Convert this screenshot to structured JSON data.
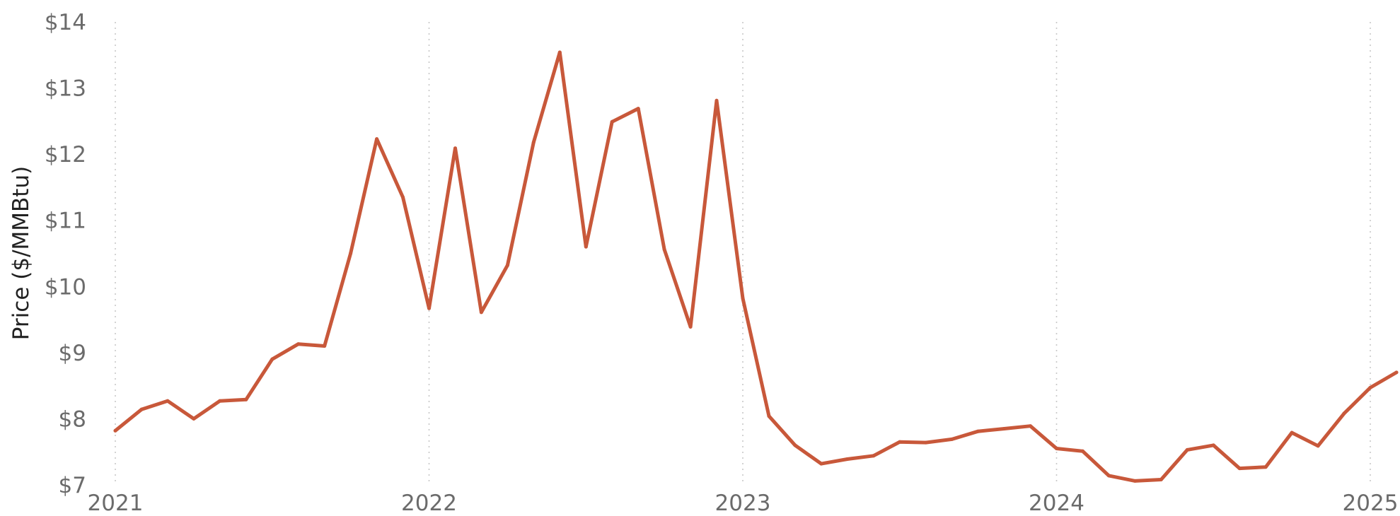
{
  "chart_data": {
    "type": "line",
    "title": "",
    "xlabel": "",
    "ylabel": "Price ($/MMBtu)",
    "x_ticks": [
      "2021",
      "2022",
      "2023",
      "2024",
      "2025"
    ],
    "y_ticks": [
      "$7",
      "$8",
      "$9",
      "$10",
      "$11",
      "$12",
      "$13",
      "$14"
    ],
    "ylim": [
      7,
      14
    ],
    "xlim": [
      "2021-01",
      "2025-02"
    ],
    "grid": "vertical dotted at year starts",
    "series": [
      {
        "color": "#c8583a",
        "x": [
          "2021-01",
          "2021-02",
          "2021-03",
          "2021-04",
          "2021-05",
          "2021-06",
          "2021-07",
          "2021-08",
          "2021-09",
          "2021-10",
          "2021-11",
          "2021-12",
          "2022-01",
          "2022-02",
          "2022-03",
          "2022-04",
          "2022-05",
          "2022-06",
          "2022-07",
          "2022-08",
          "2022-09",
          "2022-10",
          "2022-11",
          "2022-12",
          "2023-01",
          "2023-02",
          "2023-03",
          "2023-04",
          "2023-05",
          "2023-06",
          "2023-07",
          "2023-08",
          "2023-09",
          "2023-10",
          "2023-11",
          "2023-12",
          "2024-01",
          "2024-02",
          "2024-03",
          "2024-04",
          "2024-05",
          "2024-06",
          "2024-07",
          "2024-08",
          "2024-09",
          "2024-10",
          "2024-11",
          "2024-12",
          "2025-01",
          "2025-02"
        ],
        "values": [
          7.82,
          8.14,
          8.27,
          8.0,
          8.27,
          8.29,
          8.9,
          9.13,
          9.1,
          10.5,
          12.23,
          11.35,
          9.67,
          12.09,
          9.61,
          10.32,
          12.18,
          13.54,
          10.6,
          12.49,
          12.69,
          10.56,
          9.39,
          12.81,
          9.82,
          8.04,
          7.6,
          7.32,
          7.39,
          7.44,
          7.65,
          7.64,
          7.69,
          7.81,
          7.85,
          7.89,
          7.55,
          7.51,
          7.14,
          7.06,
          7.08,
          7.53,
          7.6,
          7.25,
          7.27,
          7.79,
          7.59,
          8.08,
          8.47,
          8.7
        ]
      }
    ]
  }
}
